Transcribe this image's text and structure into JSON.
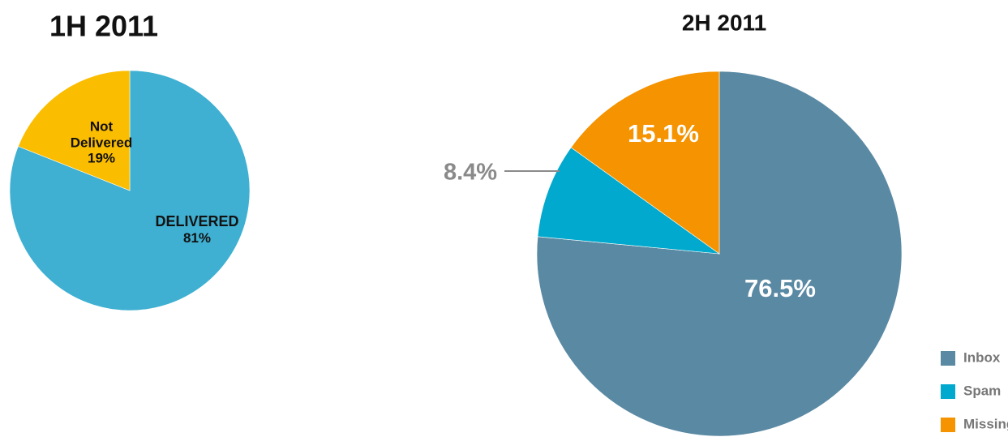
{
  "chart_data": [
    {
      "type": "pie",
      "title": "1H 2011",
      "categories": [
        "DELIVERED",
        "Not Delivered"
      ],
      "values": [
        81,
        19
      ],
      "value_labels": [
        "81%",
        "19%"
      ],
      "colors": [
        "#3fb0d2",
        "#fbbd00"
      ]
    },
    {
      "type": "pie",
      "title": "2H 2011",
      "categories": [
        "Inbox",
        "Spam",
        "Missing"
      ],
      "values": [
        76.5,
        8.4,
        15.1
      ],
      "value_labels": [
        "76.5%",
        "8.4%",
        "15.1%"
      ],
      "colors": [
        "#5a89a3",
        "#00a9cd",
        "#f59300"
      ],
      "legend": "lower right"
    }
  ]
}
